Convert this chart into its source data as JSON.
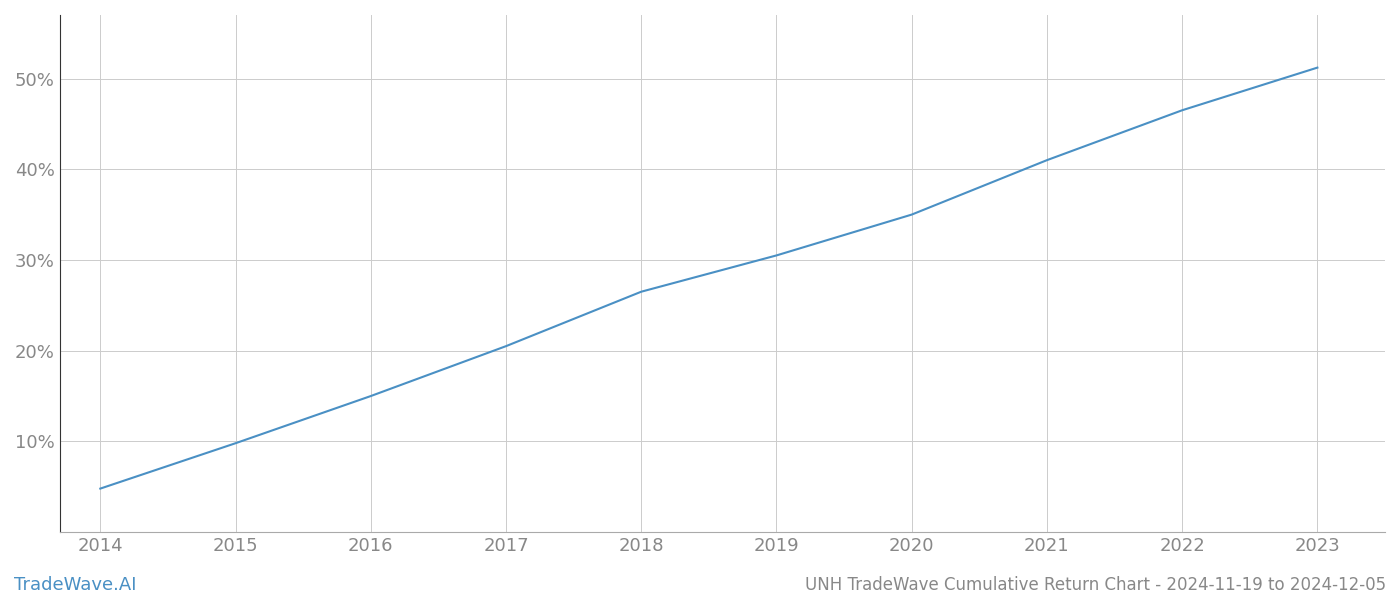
{
  "x_years": [
    2014,
    2015,
    2016,
    2017,
    2018,
    2019,
    2020,
    2021,
    2022,
    2023
  ],
  "y_values": [
    4.8,
    9.8,
    15.0,
    20.5,
    26.5,
    30.5,
    35.0,
    41.0,
    46.5,
    51.2
  ],
  "line_color": "#4a90c4",
  "line_width": 1.5,
  "ylim": [
    0,
    57
  ],
  "xlim": [
    2013.7,
    2023.5
  ],
  "yticks": [
    10,
    20,
    30,
    40,
    50
  ],
  "xticks": [
    2014,
    2015,
    2016,
    2017,
    2018,
    2019,
    2020,
    2021,
    2022,
    2023
  ],
  "grid_color": "#cccccc",
  "grid_linestyle": "-",
  "grid_linewidth": 0.7,
  "background_color": "#ffffff",
  "tick_label_color": "#888888",
  "tick_fontsize": 13,
  "watermark_text": "TradeWave.AI",
  "watermark_color": "#4a90c4",
  "watermark_fontsize": 13,
  "title_text": "UNH TradeWave Cumulative Return Chart - 2024-11-19 to 2024-12-05",
  "title_color": "#888888",
  "title_fontsize": 12,
  "spine_color": "#aaaaaa",
  "left_spine_color": "#333333"
}
